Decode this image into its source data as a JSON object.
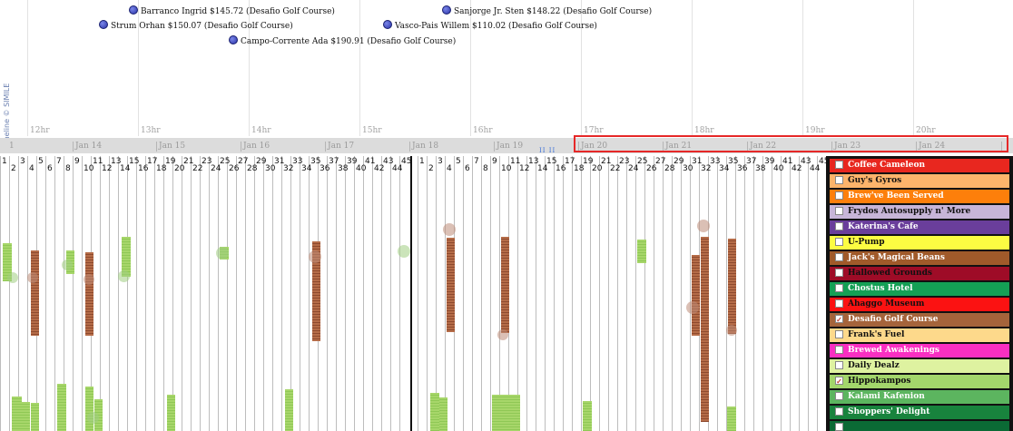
{
  "timeline": {
    "credit": "Timeline © SIMILE",
    "hours": [
      "12hr",
      "13hr",
      "14hr",
      "15hr",
      "16hr",
      "17hr",
      "18hr",
      "19hr",
      "20hr"
    ],
    "events": [
      {
        "text": "Barranco Ingrid $145.72 (Desafio Golf Course)"
      },
      {
        "text": "Sanjorge Jr. Sten $148.22 (Desafio Golf Course)"
      },
      {
        "text": "Strum Orhan $150.07 (Desafio Golf Course)"
      },
      {
        "text": "Vasco-Pais Willem $110.02 (Desafio Golf Course)"
      },
      {
        "text": "Campo-Corrente Ada $190.91 (Desafio Golf Course)"
      }
    ],
    "overview_days": [
      "Jan 14",
      "Jan 15",
      "Jan 16",
      "Jan 17",
      "Jan 18",
      "Jan 19",
      "Jan 20",
      "Jan 21",
      "Jan 22",
      "Jan 23",
      "Jan 24"
    ],
    "overview_first": "1",
    "overview_marker": "II II"
  },
  "grid": {
    "section_a": {
      "top_numbers": [
        "1",
        "3",
        "5",
        "7",
        "9",
        "11",
        "13",
        "15",
        "17",
        "19",
        "21",
        "23",
        "25",
        "27",
        "29",
        "31",
        "33",
        "35",
        "37",
        "39",
        "41",
        "43",
        "45"
      ],
      "bottom_numbers": [
        "2",
        "4",
        "6",
        "8",
        "10",
        "12",
        "14",
        "16",
        "18",
        "20",
        "22",
        "24",
        "26",
        "28",
        "30",
        "32",
        "34",
        "36",
        "38",
        "40",
        "42",
        "44"
      ]
    },
    "section_b": {
      "top_numbers": [
        "1",
        "3",
        "5",
        "7",
        "9",
        "11",
        "13",
        "15",
        "17",
        "19",
        "21",
        "23",
        "25",
        "27",
        "29",
        "31",
        "33",
        "35",
        "37",
        "39",
        "41",
        "43",
        "45"
      ],
      "bottom_numbers": [
        "2",
        "4",
        "6",
        "8",
        "10",
        "12",
        "14",
        "16",
        "18",
        "20",
        "22",
        "24",
        "26",
        "28",
        "30",
        "32",
        "34",
        "36",
        "38",
        "40",
        "42",
        "44"
      ]
    }
  },
  "legend": {
    "items": [
      {
        "label": "Coffee Cameleon",
        "color": "#e8271f",
        "text_color": "#ffffff",
        "checked": false
      },
      {
        "label": "Guy's Gyros",
        "color": "#fdb46b",
        "text_color": "#111111",
        "checked": false
      },
      {
        "label": "Brew've Been Served",
        "color": "#fd7f0b",
        "text_color": "#ffffff",
        "checked": false
      },
      {
        "label": "Frydos Autosupply n' More",
        "color": "#c7b5d8",
        "text_color": "#111111",
        "checked": false
      },
      {
        "label": "Katerina's Cafe",
        "color": "#6a3e9b",
        "text_color": "#ffffff",
        "checked": false
      },
      {
        "label": "U-Pump",
        "color": "#fcfc42",
        "text_color": "#111111",
        "checked": false
      },
      {
        "label": "Jack's Magical Beans",
        "color": "#a05a2a",
        "text_color": "#ffffff",
        "checked": false
      },
      {
        "label": "Hallowed Grounds",
        "color": "#9e0c27",
        "text_color": "#111111",
        "checked": false
      },
      {
        "label": "Chostus Hotel",
        "color": "#14a055",
        "text_color": "#ffffff",
        "checked": false
      },
      {
        "label": "Ahaggo Museum",
        "color": "#fb1212",
        "text_color": "#111111",
        "checked": false
      },
      {
        "label": "Desafio Golf Course",
        "color": "#a5643b",
        "text_color": "#ffffff",
        "checked": true
      },
      {
        "label": "Frank's Fuel",
        "color": "#fdd98b",
        "text_color": "#111111",
        "checked": false
      },
      {
        "label": "Brewed Awakenings",
        "color": "#f92fc2",
        "text_color": "#ffffff",
        "checked": false
      },
      {
        "label": "Daily Dealz",
        "color": "#def2a0",
        "text_color": "#111111",
        "checked": false
      },
      {
        "label": "Hippokampos",
        "color": "#a3d66b",
        "text_color": "#111111",
        "checked": true
      },
      {
        "label": "Kalami Kafenion",
        "color": "#5cb55f",
        "text_color": "#ffffff",
        "checked": false
      },
      {
        "label": "Shoppers' Delight",
        "color": "#18833d",
        "text_color": "#ffffff",
        "checked": false
      },
      {
        "label": "",
        "color": "#0b6a35",
        "text_color": "#ffffff",
        "checked": false
      }
    ]
  }
}
